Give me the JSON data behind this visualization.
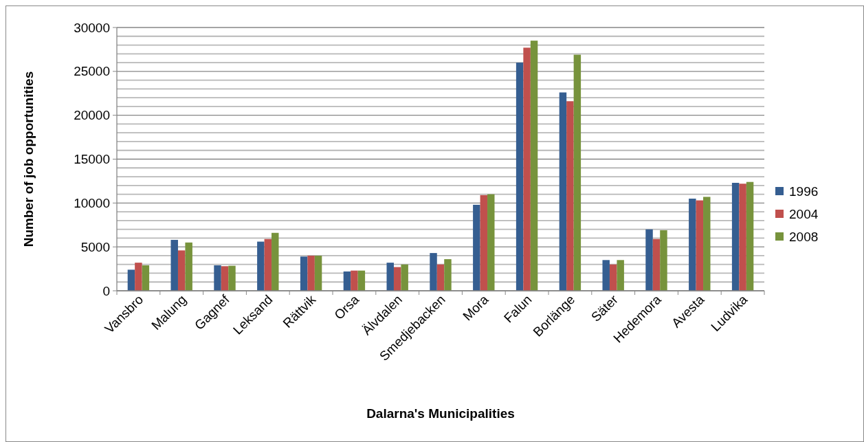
{
  "chart_data": {
    "type": "bar",
    "xlabel": "Dalarna's Municipalities",
    "ylabel": "Number of job opportunities",
    "categories": [
      "Vansbro",
      "Malung",
      "Gagnef",
      "Leksand",
      "Rättvik",
      "Orsa",
      "Älvdalen",
      "Smedjebacken",
      "Mora",
      "Falun",
      "Borlänge",
      "Säter",
      "Hedemora",
      "Avesta",
      "Ludvika"
    ],
    "series": [
      {
        "name": "1996",
        "color": "#355e91",
        "values": [
          2400,
          5800,
          2900,
          5600,
          3900,
          2200,
          3200,
          4300,
          9800,
          26000,
          22600,
          3500,
          7000,
          10500,
          12300
        ]
      },
      {
        "name": "2004",
        "color": "#c0504d",
        "values": [
          3200,
          4600,
          2800,
          5900,
          4000,
          2300,
          2700,
          3000,
          10900,
          27700,
          21600,
          3000,
          5900,
          10300,
          12200
        ]
      },
      {
        "name": "2008",
        "color": "#77933c",
        "values": [
          2900,
          5500,
          2850,
          6600,
          4000,
          2300,
          3000,
          3600,
          11000,
          28500,
          26900,
          3500,
          6900,
          10700,
          12400
        ]
      }
    ],
    "ylim": [
      0,
      30000
    ],
    "yticks": [
      0,
      {
        "value": 1000,
        "label": null
      },
      {
        "value": 2000,
        "label": null
      },
      {
        "value": 3000,
        "label": null
      },
      {
        "value": 4000,
        "label": null
      },
      5000,
      {
        "value": 6000,
        "label": null
      },
      {
        "value": 7000,
        "label": null
      },
      {
        "value": 8000,
        "label": null
      },
      {
        "value": 9000,
        "label": null
      },
      10000,
      {
        "value": 11000,
        "label": null
      },
      {
        "value": 12000,
        "label": null
      },
      {
        "value": 13000,
        "label": null
      },
      {
        "value": 14000,
        "label": null
      },
      15000,
      {
        "value": 16000,
        "label": null
      },
      {
        "value": 17000,
        "label": null
      },
      {
        "value": 18000,
        "label": null
      },
      {
        "value": 19000,
        "label": null
      },
      20000,
      {
        "value": 21000,
        "label": null
      },
      {
        "value": 22000,
        "label": null
      },
      {
        "value": 23000,
        "label": null
      },
      {
        "value": 24000,
        "label": null
      },
      25000,
      {
        "value": 26000,
        "label": null
      },
      {
        "value": 27000,
        "label": null
      },
      {
        "value": 28000,
        "label": null
      },
      {
        "value": 29000,
        "label": null
      },
      30000
    ],
    "grid": true,
    "legend": "right"
  }
}
